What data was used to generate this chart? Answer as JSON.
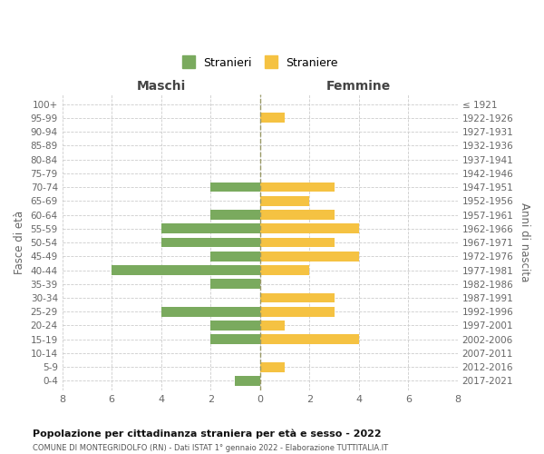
{
  "age_groups": [
    "0-4",
    "5-9",
    "10-14",
    "15-19",
    "20-24",
    "25-29",
    "30-34",
    "35-39",
    "40-44",
    "45-49",
    "50-54",
    "55-59",
    "60-64",
    "65-69",
    "70-74",
    "75-79",
    "80-84",
    "85-89",
    "90-94",
    "95-99",
    "100+"
  ],
  "birth_years": [
    "2017-2021",
    "2012-2016",
    "2007-2011",
    "2002-2006",
    "1997-2001",
    "1992-1996",
    "1987-1991",
    "1982-1986",
    "1977-1981",
    "1972-1976",
    "1967-1971",
    "1962-1966",
    "1957-1961",
    "1952-1956",
    "1947-1951",
    "1942-1946",
    "1937-1941",
    "1932-1936",
    "1927-1931",
    "1922-1926",
    "≤ 1921"
  ],
  "maschi": [
    1,
    0,
    0,
    2,
    2,
    4,
    0,
    2,
    6,
    2,
    4,
    4,
    2,
    0,
    2,
    0,
    0,
    0,
    0,
    0,
    0
  ],
  "femmine": [
    0,
    1,
    0,
    4,
    1,
    3,
    3,
    0,
    2,
    4,
    3,
    4,
    3,
    2,
    3,
    0,
    0,
    0,
    0,
    1,
    0
  ],
  "maschi_color": "#7aaa5e",
  "femmine_color": "#f5c242",
  "title": "Popolazione per cittadinanza straniera per età e sesso - 2022",
  "subtitle": "COMUNE DI MONTEGRIDOLFO (RN) - Dati ISTAT 1° gennaio 2022 - Elaborazione TUTTITALIA.IT",
  "xlabel_left": "Maschi",
  "xlabel_right": "Femmine",
  "ylabel_left": "Fasce di età",
  "ylabel_right": "Anni di nascita",
  "legend_maschi": "Stranieri",
  "legend_femmine": "Straniere",
  "xlim": 8,
  "background_color": "#ffffff",
  "grid_color": "#cccccc"
}
